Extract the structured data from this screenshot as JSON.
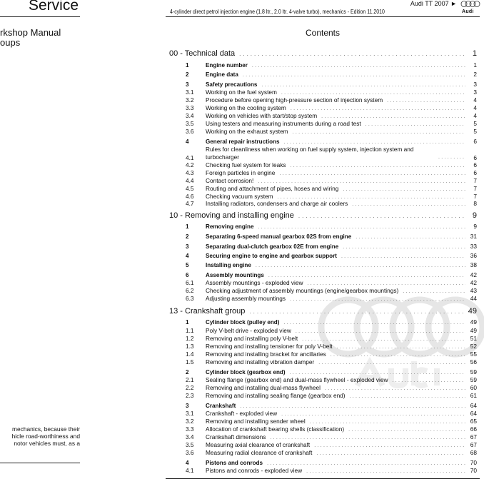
{
  "left_panel": {
    "brand": "Service",
    "title_lines": [
      "rkshop Manual",
      "oups"
    ],
    "paragraph_lines": [
      "mechanics, because their",
      "hicle road-worthiness and",
      "notor vehicles must, as a"
    ]
  },
  "header": {
    "model": "Audi TT 2007 ►",
    "subtitle": "4-cylinder direct petrol injection engine (1.8 ltr., 2.0 ltr. 4-valve turbo), mechanics - Edition 11.2010",
    "logo_text": "Audi",
    "logo_icon": "audi-rings-icon"
  },
  "contents_title": "Contents",
  "watermark_text": "Audi",
  "toc": [
    {
      "level": "sec",
      "num": "",
      "title": "00 - Technical data",
      "page": "1"
    },
    {
      "level": "l1",
      "num": "1",
      "title": "Engine number",
      "page": "1"
    },
    {
      "level": "l1",
      "num": "2",
      "title": "Engine data",
      "page": "2"
    },
    {
      "level": "l1",
      "num": "3",
      "title": "Safety precautions",
      "page": "3"
    },
    {
      "level": "l2",
      "num": "3.1",
      "title": "Working on the fuel system",
      "page": "3"
    },
    {
      "level": "l2",
      "num": "3.2",
      "title": "Procedure before opening high-pressure section of injection system",
      "page": "4"
    },
    {
      "level": "l2",
      "num": "3.3",
      "title": "Working on the cooling system",
      "page": "4"
    },
    {
      "level": "l2",
      "num": "3.4",
      "title": "Working on vehicles with start/stop system",
      "page": "4"
    },
    {
      "level": "l2",
      "num": "3.5",
      "title": "Using testers and measuring instruments during a road test",
      "page": "5"
    },
    {
      "level": "l2",
      "num": "3.6",
      "title": "Working on the exhaust system",
      "page": "5"
    },
    {
      "level": "l1",
      "num": "4",
      "title": "General repair instructions",
      "page": "6"
    },
    {
      "level": "l2",
      "num": "4.1",
      "title": "Rules for cleanliness when working on fuel supply system, injection system and turbocharger",
      "page": "6"
    },
    {
      "level": "l2",
      "num": "4.2",
      "title": "Checking fuel system for leaks",
      "page": "6"
    },
    {
      "level": "l2",
      "num": "4.3",
      "title": "Foreign particles in engine",
      "page": "6"
    },
    {
      "level": "l2",
      "num": "4.4",
      "title": "Contact corrosion!",
      "page": "7"
    },
    {
      "level": "l2",
      "num": "4.5",
      "title": "Routing and attachment of pipes, hoses and wiring",
      "page": "7"
    },
    {
      "level": "l2",
      "num": "4.6",
      "title": "Checking vacuum system",
      "page": "7"
    },
    {
      "level": "l2",
      "num": "4.7",
      "title": "Installing radiators, condensers and charge air coolers",
      "page": "8"
    },
    {
      "level": "sec",
      "num": "",
      "title": "10 - Removing and installing engine",
      "page": "9"
    },
    {
      "level": "l1",
      "num": "1",
      "title": "Removing engine",
      "page": "9"
    },
    {
      "level": "l1",
      "num": "2",
      "title": "Separating 6-speed manual gearbox 02S from engine",
      "page": "31"
    },
    {
      "level": "l1",
      "num": "3",
      "title": "Separating dual-clutch gearbox 02E from engine",
      "page": "33"
    },
    {
      "level": "l1",
      "num": "4",
      "title": "Securing engine to engine and gearbox support",
      "page": "36"
    },
    {
      "level": "l1",
      "num": "5",
      "title": "Installing engine",
      "page": "38"
    },
    {
      "level": "l1",
      "num": "6",
      "title": "Assembly mountings",
      "page": "42"
    },
    {
      "level": "l2",
      "num": "6.1",
      "title": "Assembly mountings - exploded view",
      "page": "42"
    },
    {
      "level": "l2",
      "num": "6.2",
      "title": "Checking adjustment of assembly mountings (engine/gearbox mountings)",
      "page": "43"
    },
    {
      "level": "l2",
      "num": "6.3",
      "title": "Adjusting assembly mountings",
      "page": "44"
    },
    {
      "level": "sec",
      "num": "",
      "title": "13 - Crankshaft group",
      "page": "49"
    },
    {
      "level": "l1",
      "num": "1",
      "title": "Cylinder block (pulley end)",
      "page": "49"
    },
    {
      "level": "l2",
      "num": "1.1",
      "title": "Poly V-belt drive - exploded view",
      "page": "49"
    },
    {
      "level": "l2",
      "num": "1.2",
      "title": "Removing and installing poly V-belt",
      "page": "51"
    },
    {
      "level": "l2",
      "num": "1.3",
      "title": "Removing and installing tensioner for poly V-belt",
      "page": "52"
    },
    {
      "level": "l2",
      "num": "1.4",
      "title": "Removing and installing bracket for ancillaries",
      "page": "55"
    },
    {
      "level": "l2",
      "num": "1.5",
      "title": "Removing and installing vibration damper",
      "page": "56"
    },
    {
      "level": "l1",
      "num": "2",
      "title": "Cylinder block (gearbox end)",
      "page": "59"
    },
    {
      "level": "l2",
      "num": "2.1",
      "title": "Sealing flange (gearbox end) and dual-mass flywheel - exploded view",
      "page": "59"
    },
    {
      "level": "l2",
      "num": "2.2",
      "title": "Removing and installing dual-mass flywheel",
      "page": "60"
    },
    {
      "level": "l2",
      "num": "2.3",
      "title": "Removing and installing sealing flange (gearbox end)",
      "page": "61"
    },
    {
      "level": "l1",
      "num": "3",
      "title": "Crankshaft",
      "page": "64"
    },
    {
      "level": "l2",
      "num": "3.1",
      "title": "Crankshaft - exploded view",
      "page": "64"
    },
    {
      "level": "l2",
      "num": "3.2",
      "title": "Removing and installing sender wheel",
      "page": "65"
    },
    {
      "level": "l2",
      "num": "3.3",
      "title": "Allocation of crankshaft bearing shells (classification)",
      "page": "66"
    },
    {
      "level": "l2",
      "num": "3.4",
      "title": "Crankshaft dimensions",
      "page": "67"
    },
    {
      "level": "l2",
      "num": "3.5",
      "title": "Measuring axial clearance of crankshaft",
      "page": "67"
    },
    {
      "level": "l2",
      "num": "3.6",
      "title": "Measuring radial clearance of crankshaft",
      "page": "68"
    },
    {
      "level": "l1",
      "num": "4",
      "title": "Pistons and conrods",
      "page": "70"
    },
    {
      "level": "l2",
      "num": "4.1",
      "title": "Pistons and conrods - exploded view",
      "page": "70"
    }
  ]
}
